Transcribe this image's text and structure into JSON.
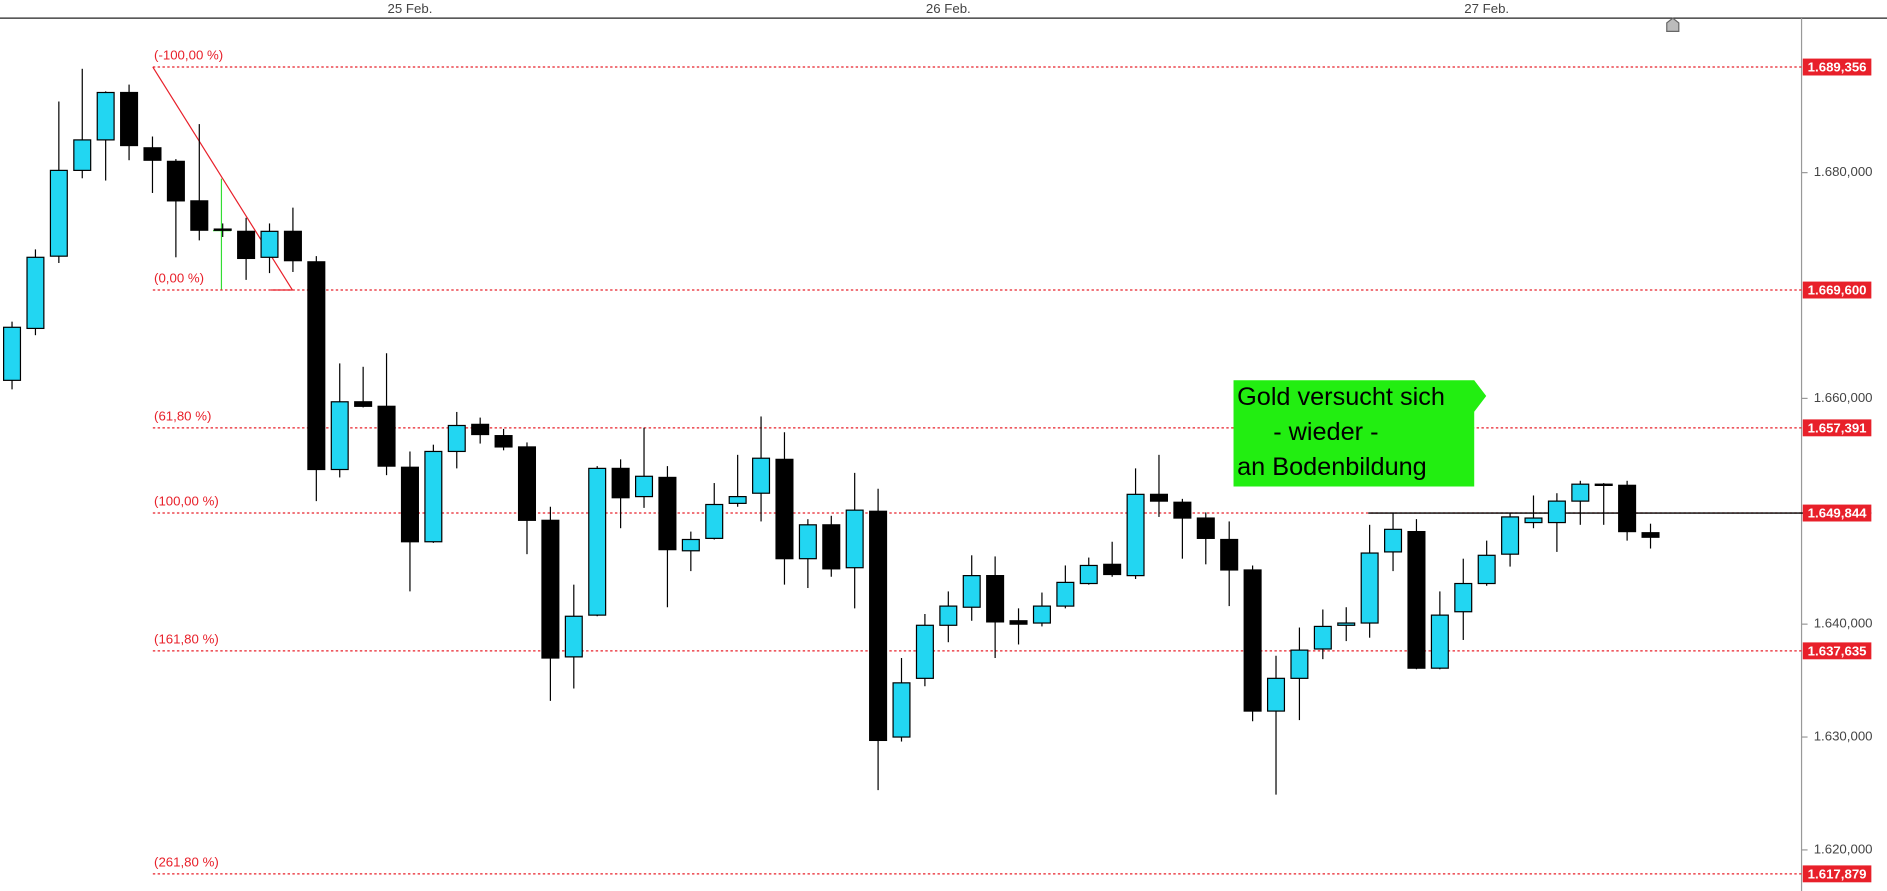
{
  "chart_data": {
    "type": "candlestick",
    "categories": [
      null,
      null,
      null,
      null,
      null,
      null,
      null,
      null,
      null,
      null,
      null,
      null,
      null,
      null,
      null,
      null,
      null,
      "25 Feb.",
      null,
      null,
      null,
      null,
      null,
      null,
      null,
      null,
      null,
      null,
      null,
      null,
      null,
      null,
      null,
      null,
      null,
      null,
      null,
      null,
      null,
      null,
      "26 Feb.",
      null,
      null,
      null,
      null,
      null,
      null,
      null,
      null,
      null,
      null,
      null,
      null,
      null,
      null,
      null,
      null,
      null,
      null,
      null,
      null,
      null,
      null,
      "27 Feb.",
      null,
      null,
      null,
      null,
      null,
      null,
      null
    ],
    "open": [
      1661.6,
      1666.2,
      1672.6,
      1680.2,
      1682.9,
      1687.1,
      1682.2,
      1681.0,
      1677.5,
      1675.0,
      1674.8,
      1672.5,
      1674.8,
      1672.1,
      1653.7,
      1659.7,
      1659.3,
      1653.9,
      1647.3,
      1655.3,
      1657.7,
      1656.7,
      1655.7,
      1649.2,
      1637.1,
      1640.8,
      1653.8,
      1651.3,
      1653.0,
      1646.5,
      1647.6,
      1650.7,
      1651.6,
      1654.6,
      1645.8,
      1648.8,
      1645.0,
      1650.0,
      1630.0,
      1635.2,
      1639.9,
      1641.5,
      1644.3,
      1640.3,
      1640.1,
      1641.6,
      1643.6,
      1645.3,
      1644.3,
      1651.5,
      1650.8,
      1649.4,
      1647.5,
      1644.8,
      1632.3,
      1635.2,
      1637.8,
      1639.9,
      1640.1,
      1646.4,
      1648.2,
      1636.1,
      1641.1,
      1643.6,
      1646.2,
      1649.0,
      1649.0,
      1650.9,
      1652.4,
      1652.3,
      1648.1
    ],
    "high": [
      1666.8,
      1673.2,
      1686.3,
      1689.2,
      1687.2,
      1687.8,
      1683.2,
      1681.2,
      1684.3,
      1675.5,
      1676.0,
      1675.5,
      1676.9,
      1672.6,
      1663.1,
      1662.8,
      1664.0,
      1655.3,
      1655.9,
      1658.8,
      1658.3,
      1657.3,
      1656.1,
      1650.4,
      1643.5,
      1654.0,
      1654.6,
      1657.4,
      1654.0,
      1648.2,
      1652.5,
      1655.0,
      1658.4,
      1657.0,
      1649.3,
      1649.6,
      1653.4,
      1652.0,
      1637.0,
      1640.9,
      1642.9,
      1646.1,
      1646.0,
      1641.4,
      1642.8,
      1645.2,
      1645.9,
      1647.3,
      1653.8,
      1655.0,
      1651.1,
      1649.9,
      1649.1,
      1645.2,
      1637.2,
      1639.7,
      1641.3,
      1641.5,
      1648.8,
      1649.9,
      1649.3,
      1642.9,
      1645.8,
      1647.4,
      1649.8,
      1651.4,
      1651.6,
      1652.7,
      1652.5,
      1652.7,
      1648.9
    ],
    "low": [
      1660.8,
      1665.6,
      1672.0,
      1679.5,
      1679.3,
      1681.1,
      1678.2,
      1672.5,
      1674.0,
      1674.3,
      1670.5,
      1671.1,
      1671.2,
      1650.9,
      1653.0,
      1659.2,
      1653.2,
      1642.9,
      1647.2,
      1653.8,
      1656.0,
      1655.4,
      1646.2,
      1633.2,
      1634.3,
      1640.7,
      1648.5,
      1650.3,
      1641.5,
      1644.7,
      1647.5,
      1650.4,
      1649.1,
      1643.5,
      1643.2,
      1644.2,
      1641.4,
      1625.3,
      1629.6,
      1634.5,
      1638.4,
      1640.3,
      1637.0,
      1638.2,
      1639.8,
      1641.4,
      1643.5,
      1644.2,
      1644.0,
      1649.5,
      1645.8,
      1645.3,
      1641.6,
      1631.4,
      1624.9,
      1631.5,
      1636.9,
      1638.5,
      1638.8,
      1644.7,
      1636.0,
      1636.0,
      1638.6,
      1643.4,
      1645.1,
      1648.5,
      1646.4,
      1648.8,
      1648.8,
      1647.4,
      1646.7
    ],
    "close": [
      1666.3,
      1672.5,
      1680.2,
      1682.9,
      1687.1,
      1682.4,
      1681.1,
      1677.5,
      1674.9,
      1674.9,
      1672.4,
      1674.8,
      1672.2,
      1653.7,
      1659.7,
      1659.3,
      1654.0,
      1647.3,
      1655.3,
      1657.6,
      1656.8,
      1655.7,
      1649.2,
      1637.0,
      1640.7,
      1653.8,
      1651.2,
      1653.1,
      1646.6,
      1647.5,
      1650.6,
      1651.3,
      1654.7,
      1645.8,
      1648.8,
      1644.9,
      1650.1,
      1629.7,
      1634.8,
      1639.9,
      1641.6,
      1644.3,
      1640.2,
      1640.0,
      1641.6,
      1643.7,
      1645.2,
      1644.4,
      1651.5,
      1650.9,
      1649.4,
      1647.6,
      1644.8,
      1632.3,
      1635.2,
      1637.7,
      1639.8,
      1640.1,
      1646.3,
      1648.4,
      1636.1,
      1640.8,
      1643.6,
      1646.1,
      1649.5,
      1649.4,
      1650.9,
      1652.4,
      1652.3,
      1648.2,
      1647.7
    ],
    "up_color": "#22d6f2",
    "down_color": "#000000",
    "ylim": [
      1616.36,
      1693.69
    ],
    "yticks": [
      {
        "value": 1620,
        "label": "1.620,000"
      },
      {
        "value": 1630,
        "label": "1.630,000"
      },
      {
        "value": 1640,
        "label": "1.640,000"
      },
      {
        "value": 1660,
        "label": "1.660,000"
      },
      {
        "value": 1680,
        "label": "1.680,000"
      }
    ],
    "levels": [
      {
        "label": "(-100,00 %)",
        "price": {
          "value": 1689.356,
          "label": "1.689,356"
        }
      },
      {
        "label": "(0,00 %)",
        "price": {
          "value": 1669.6,
          "label": "1.669,600"
        }
      },
      {
        "label": "(61,80 %)",
        "price": {
          "value": 1657.391,
          "label": "1.657,391"
        }
      },
      {
        "label": "(100,00 %)",
        "price": {
          "value": 1649.844,
          "label": "1.649,844"
        }
      },
      {
        "label": "(161,80 %)",
        "price": {
          "value": 1637.635,
          "label": "1.637,635"
        }
      },
      {
        "label": "(261,80 %)",
        "price": {
          "value": 1617.879,
          "label": "1.617,879"
        }
      }
    ],
    "level_color": "#e8202a",
    "annotation": {
      "lines": [
        "Gold versucht sich",
        "- wieder -",
        "an Bodenbildung"
      ],
      "color": "#22ee11"
    }
  }
}
